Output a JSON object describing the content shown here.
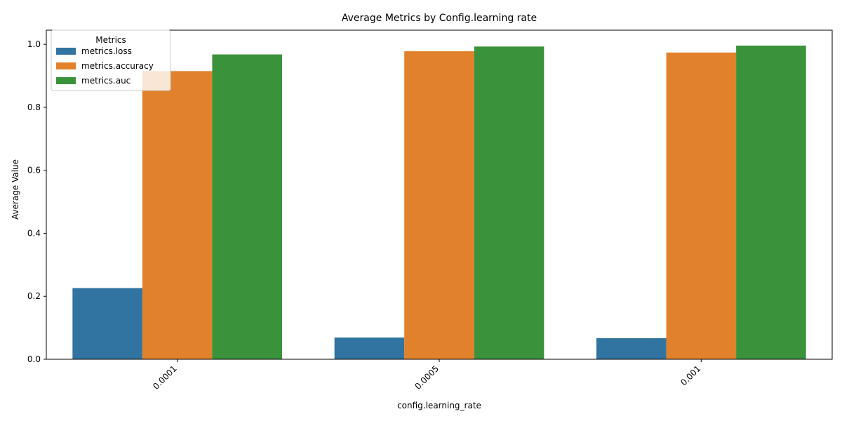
{
  "chart_data": {
    "type": "bar",
    "title": "Average Metrics by Config.learning rate",
    "xlabel": "config.learning_rate",
    "ylabel": "Average Value",
    "categories": [
      "0.0001",
      "0.0005",
      "0.001"
    ],
    "series": [
      {
        "name": "metrics.loss",
        "color": "#3274a1",
        "values": [
          0.226,
          0.069,
          0.067
        ]
      },
      {
        "name": "metrics.accuracy",
        "color": "#e1812c",
        "values": [
          0.915,
          0.978,
          0.974
        ]
      },
      {
        "name": "metrics.auc",
        "color": "#3a923a",
        "values": [
          0.968,
          0.993,
          0.996
        ]
      }
    ],
    "ylim": [
      0,
      1.045
    ],
    "yticks": [
      "0.0",
      "0.2",
      "0.4",
      "0.6",
      "0.8",
      "1.0"
    ],
    "legend": {
      "title": "Metrics",
      "position": "top-left"
    },
    "grid": false
  }
}
